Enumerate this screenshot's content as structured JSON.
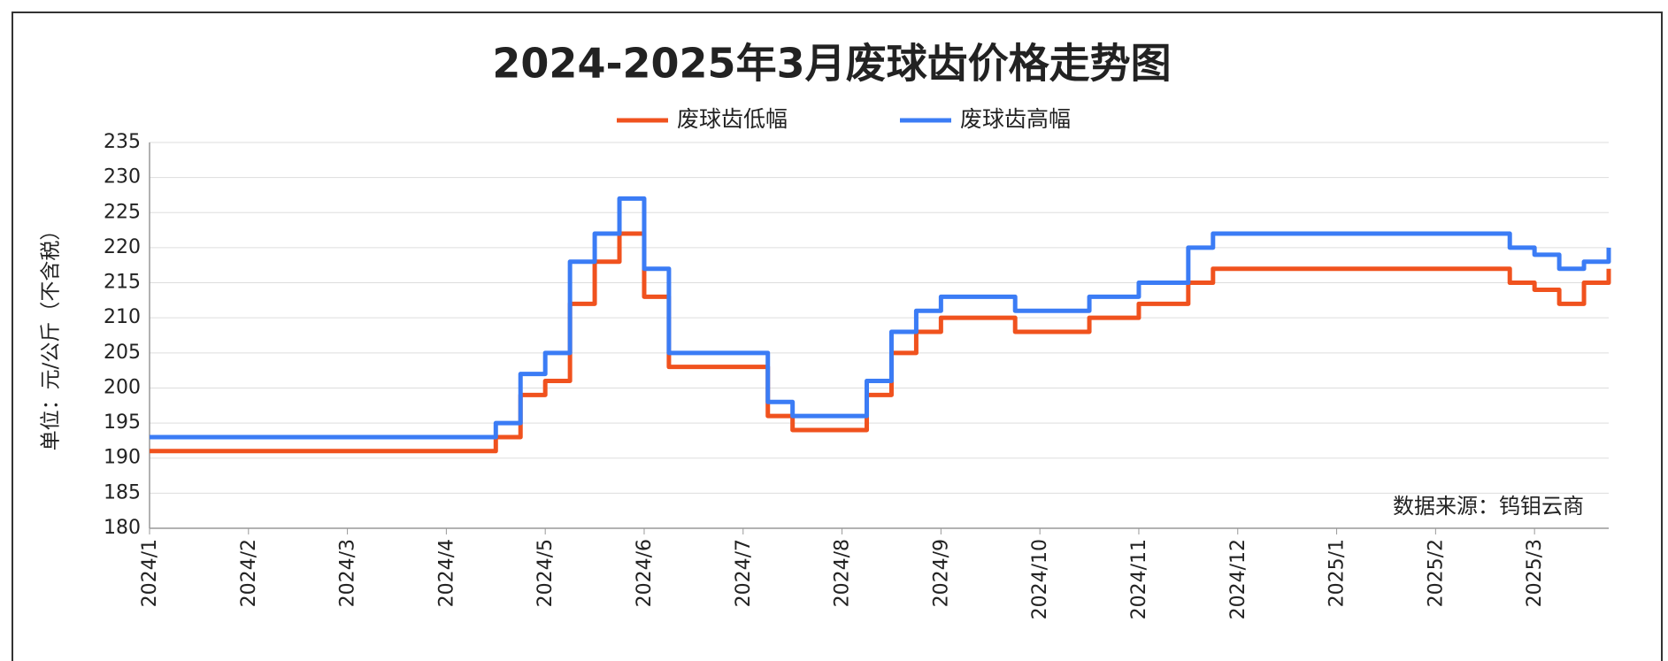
{
  "chart_data": {
    "type": "line",
    "title": "2024-2025年3月废球齿价格走势图",
    "y_label": "单位：元/公斤（不含税）",
    "annotation": "数据来源：钨钼云商",
    "categories": [
      "2024/1",
      null,
      null,
      null,
      "2024/2",
      null,
      null,
      null,
      "2024/3",
      null,
      null,
      null,
      "2024/4",
      null,
      null,
      null,
      "2024/5",
      null,
      null,
      null,
      "2024/6",
      null,
      null,
      null,
      "2024/7",
      null,
      null,
      null,
      "2024/8",
      null,
      null,
      null,
      "2024/9",
      null,
      null,
      null,
      "2024/10",
      null,
      null,
      null,
      "2024/11",
      null,
      null,
      null,
      "2024/12",
      null,
      null,
      null,
      "2025/1",
      null,
      null,
      null,
      "2025/2",
      null,
      null,
      null,
      "2025/3",
      null,
      null,
      null
    ],
    "series": [
      {
        "name": "废球齿低幅",
        "color": "#f0521e",
        "values": [
          191,
          191,
          191,
          191,
          191,
          191,
          191,
          191,
          191,
          191,
          191,
          191,
          191,
          191,
          193,
          199,
          201,
          212,
          218,
          222,
          213,
          203,
          203,
          203,
          203,
          196,
          194,
          194,
          194,
          199,
          205,
          208,
          210,
          210,
          210,
          208,
          208,
          208,
          210,
          210,
          212,
          212,
          215,
          217,
          217,
          217,
          217,
          217,
          217,
          217,
          217,
          217,
          217,
          217,
          217,
          215,
          214,
          212,
          215,
          217
        ]
      },
      {
        "name": "废球齿高幅",
        "color": "#3b7cf5",
        "values": [
          193,
          193,
          193,
          193,
          193,
          193,
          193,
          193,
          193,
          193,
          193,
          193,
          193,
          193,
          195,
          202,
          205,
          218,
          222,
          227,
          217,
          205,
          205,
          205,
          205,
          198,
          196,
          196,
          196,
          201,
          208,
          211,
          213,
          213,
          213,
          211,
          211,
          211,
          213,
          213,
          215,
          215,
          220,
          222,
          222,
          222,
          222,
          222,
          222,
          222,
          222,
          222,
          222,
          222,
          222,
          220,
          219,
          217,
          218,
          220
        ]
      }
    ],
    "ylim": [
      180,
      235
    ],
    "yticks": [
      180,
      185,
      190,
      195,
      200,
      205,
      210,
      215,
      220,
      225,
      230,
      235
    ],
    "grid": true
  }
}
